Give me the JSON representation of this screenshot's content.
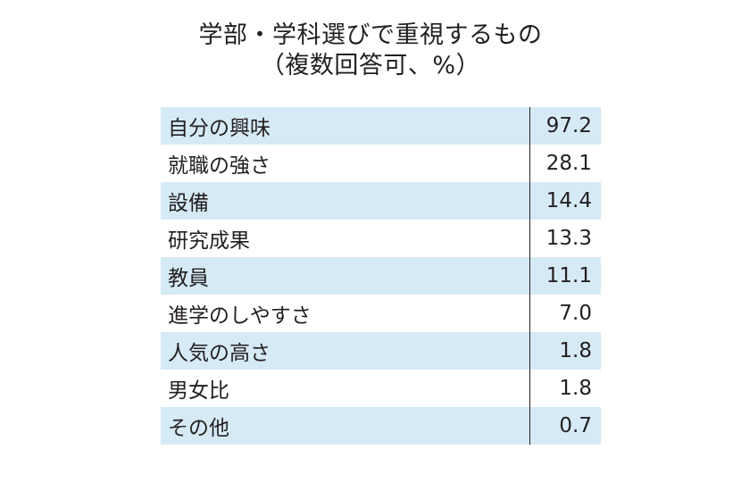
{
  "title_line1": "学部・学科選びで重視するもの",
  "title_line2": "（複数回答可、%）",
  "chart_data": {
    "type": "table",
    "title": "学部・学科選びで重視するもの",
    "subtitle": "（複数回答可、%）",
    "rows": [
      {
        "label": "自分の興味",
        "value": "97.2"
      },
      {
        "label": "就職の強さ",
        "value": "28.1"
      },
      {
        "label": "設備",
        "value": "14.4"
      },
      {
        "label": "研究成果",
        "value": "13.3"
      },
      {
        "label": "教員",
        "value": "11.1"
      },
      {
        "label": "進学のしやすさ",
        "value": "7.0"
      },
      {
        "label": "人気の高さ",
        "value": "1.8"
      },
      {
        "label": "男女比",
        "value": "1.8"
      },
      {
        "label": "その他",
        "value": "0.7"
      }
    ]
  },
  "colors": {
    "stripe": "#d6eaf6",
    "text": "#231f20",
    "background": "#ffffff"
  }
}
